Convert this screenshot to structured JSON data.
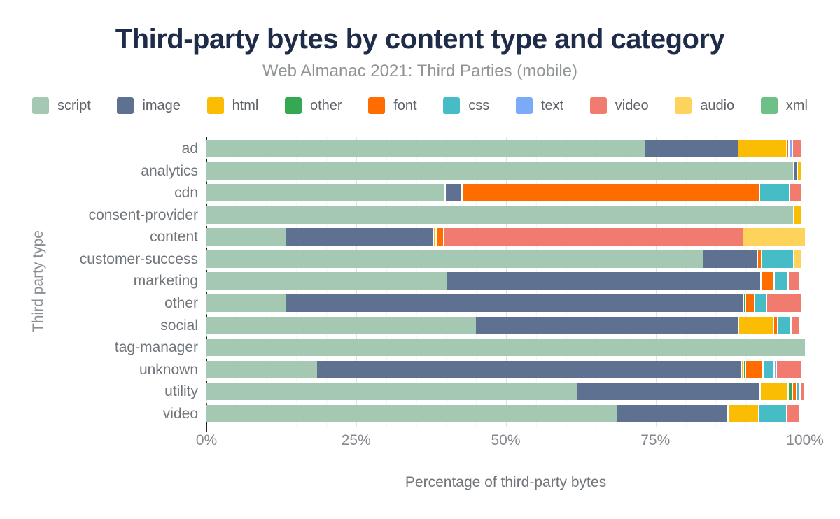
{
  "title": "Third-party bytes by content type and category",
  "subtitle": "Web Almanac 2021: Third Parties (mobile)",
  "axes": {
    "y_title": "Third party type",
    "x_title": "Percentage of third-party bytes",
    "x_ticks": [
      "0%",
      "25%",
      "50%",
      "75%",
      "100%"
    ]
  },
  "colors": {
    "title": "#1e2b49",
    "subtitle": "#909497",
    "axis_text": "#70757a",
    "tick_text": "#84888c",
    "grid_major": "#e3e3e3",
    "grid_minor": "#f2f2f2"
  },
  "chart_data": {
    "type": "bar",
    "orientation": "horizontal",
    "stacked": true,
    "title": "Third-party bytes by content type and category",
    "subtitle": "Web Almanac 2021: Third Parties (mobile)",
    "xlabel": "Percentage of third-party bytes",
    "ylabel": "Third party type",
    "xlim": [
      0,
      100
    ],
    "x_tick_labels": [
      "0%",
      "25%",
      "50%",
      "75%",
      "100%"
    ],
    "grid": "minor every 5%, major every 25%",
    "legend_position": "top",
    "units": "percent",
    "categories": [
      "ad",
      "analytics",
      "cdn",
      "consent-provider",
      "content",
      "customer-success",
      "marketing",
      "other",
      "social",
      "tag-manager",
      "unknown",
      "utility",
      "video"
    ],
    "palette": {
      "script": "#a5c8b2",
      "image": "#5e7190",
      "html": "#fbbc04",
      "other": "#34a853",
      "font": "#ff6d00",
      "css": "#46bdc6",
      "text": "#7baaf7",
      "video": "#f07b6e",
      "audio": "#fdd35c",
      "xml": "#6fc087"
    },
    "series": [
      {
        "name": "script",
        "values": [
          73.3,
          98.3,
          40.0,
          98.3,
          13.2,
          83.0,
          40.2,
          13.3,
          45.0,
          100,
          18.5,
          62.0,
          68.5
        ]
      },
      {
        "name": "image",
        "values": [
          15.5,
          0.5,
          2.6,
          0,
          24.8,
          9.2,
          52.5,
          76.5,
          44.0,
          0,
          71.0,
          30.6,
          18.8
        ]
      },
      {
        "name": "html",
        "values": [
          8.3,
          0.5,
          0,
          1.0,
          0.5,
          0,
          0,
          0,
          5.9,
          0,
          0.3,
          4.7,
          5.1
        ]
      },
      {
        "name": "other",
        "values": [
          0,
          0,
          0,
          0,
          0,
          0,
          0,
          0.4,
          0,
          0,
          0.4,
          0.7,
          0
        ]
      },
      {
        "name": "font",
        "values": [
          0.3,
          0,
          49.9,
          0,
          1.0,
          0.7,
          2.3,
          1.5,
          0.7,
          0,
          2.9,
          0.7,
          0
        ]
      },
      {
        "name": "css",
        "values": [
          0,
          0,
          5.0,
          0,
          0,
          5.4,
          2.3,
          2.0,
          2.2,
          0,
          1.9,
          0.6,
          4.7
        ]
      },
      {
        "name": "text",
        "values": [
          0.6,
          0,
          0,
          0,
          0,
          0,
          0,
          0,
          0,
          0,
          0.3,
          0,
          0
        ]
      },
      {
        "name": "video",
        "values": [
          1.3,
          0,
          1.9,
          0,
          50.2,
          0,
          1.7,
          5.6,
          1.1,
          0,
          4.1,
          0.6,
          1.9
        ]
      },
      {
        "name": "audio",
        "values": [
          0,
          0,
          0,
          0,
          10.3,
          1.1,
          0,
          0,
          0,
          0,
          0,
          0,
          0
        ]
      },
      {
        "name": "xml",
        "values": [
          0,
          0,
          0,
          0,
          0,
          0,
          0,
          0,
          0,
          0,
          0,
          0,
          0
        ]
      }
    ]
  }
}
